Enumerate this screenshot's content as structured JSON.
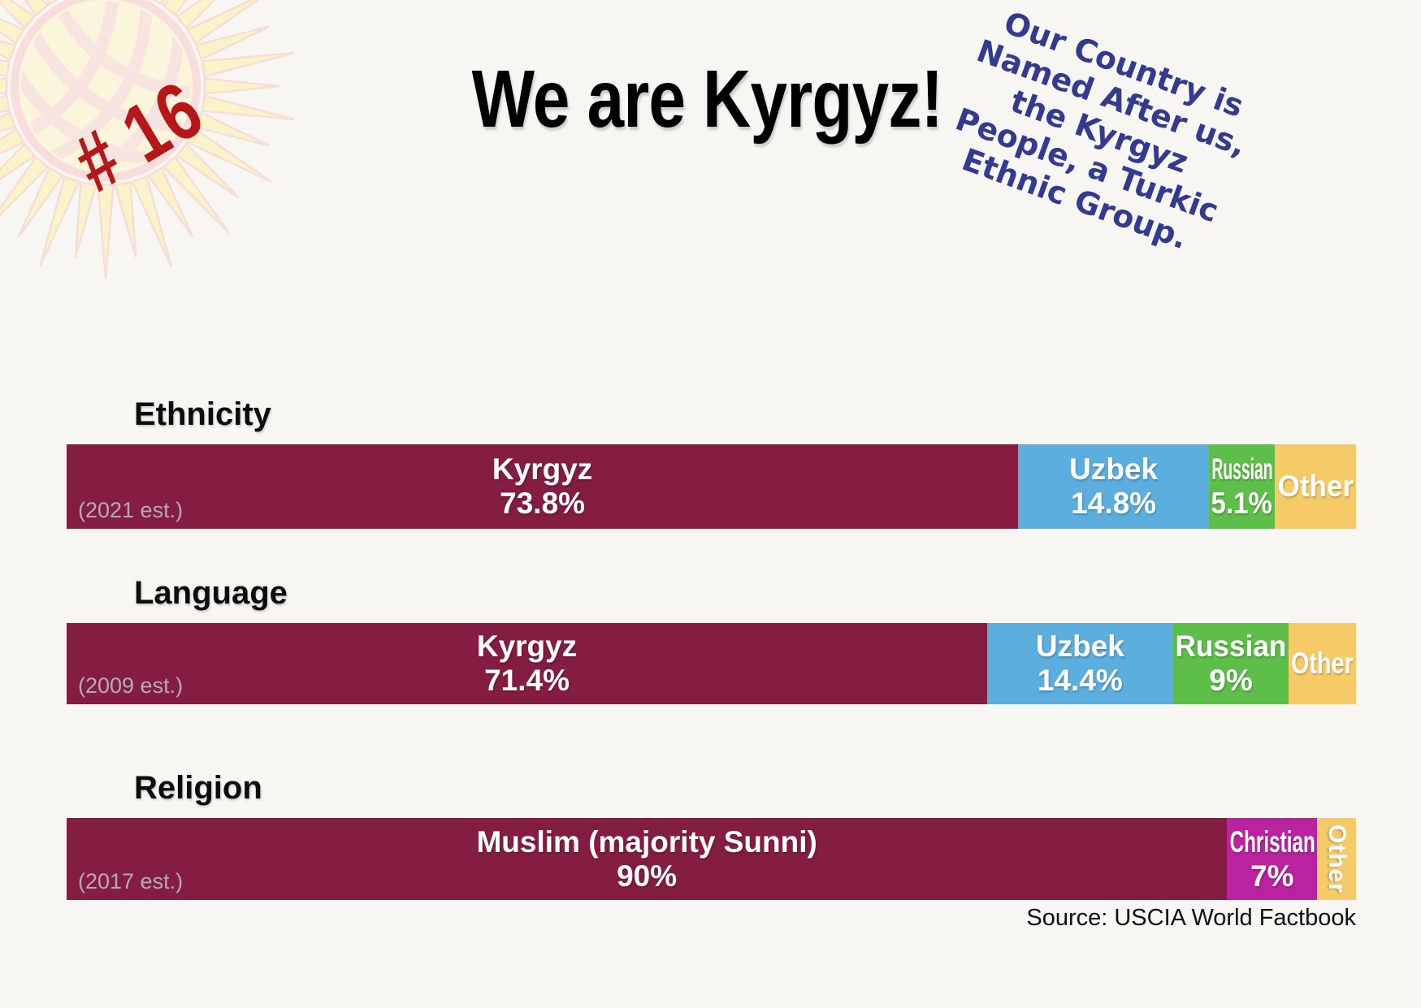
{
  "badge": {
    "label": "# 16"
  },
  "header": {
    "title": "We are Kyrgyz!"
  },
  "note": {
    "text": "Our Country is\nNamed After us,\nthe Kyrgyz\nPeople, a Turkic\nEthnic Group."
  },
  "source": {
    "text": "Source: USCIA World Factbook"
  },
  "colors": {
    "kyrgyz_maroon": "#851d42",
    "uzbek_blue": "#5baedd",
    "russian_green": "#5dbe4a",
    "other_yellow": "#f5ca67",
    "christian_magenta": "#bb22a2",
    "note_blue": "#333a90",
    "badge_red": "#b6181a",
    "est_gray": "#b3aab2"
  },
  "rows": [
    {
      "header": "Ethnicity",
      "est": "(2021 est.)",
      "segments": [
        {
          "label": "Kyrgyz",
          "value": "73.8%",
          "pct": 73.8,
          "color": "#851d42"
        },
        {
          "label": "Uzbek",
          "value": "14.8%",
          "pct": 14.8,
          "color": "#5baedd"
        },
        {
          "label": "Russian",
          "value": "5.1%",
          "pct": 5.1,
          "color": "#5dbe4a"
        },
        {
          "label": "Other",
          "value": "",
          "pct": 6.3,
          "color": "#f5ca67"
        }
      ]
    },
    {
      "header": "Language",
      "est": "(2009 est.)",
      "segments": [
        {
          "label": "Kyrgyz",
          "value": "71.4%",
          "pct": 71.4,
          "color": "#851d42"
        },
        {
          "label": "Uzbek",
          "value": "14.4%",
          "pct": 14.4,
          "color": "#5baedd"
        },
        {
          "label": "Russian",
          "value": "9%",
          "pct": 9.0,
          "color": "#5dbe4a"
        },
        {
          "label": "Other",
          "value": "",
          "pct": 5.2,
          "color": "#f5ca67"
        }
      ]
    },
    {
      "header": "Religion",
      "est": "(2017 est.)",
      "segments": [
        {
          "label": "Muslim (majority Sunni)",
          "value": "90%",
          "pct": 90.0,
          "color": "#851d42"
        },
        {
          "label": "Christian",
          "value": "7%",
          "pct": 7.0,
          "color": "#bb22a2"
        },
        {
          "label": "Other",
          "value": "",
          "pct": 3.0,
          "color": "#f5ca67",
          "vertical": true
        }
      ]
    }
  ],
  "chart_data": [
    {
      "type": "bar",
      "variant": "stacked-horizontal",
      "title": "Ethnicity",
      "subtitle": "(2021 est.)",
      "categories": [
        "Kyrgyz",
        "Uzbek",
        "Russian",
        "Other"
      ],
      "values": [
        73.8,
        14.8,
        5.1,
        6.3
      ],
      "unit": "%",
      "xlim": [
        0,
        100
      ],
      "grid": false,
      "legend": "labels-inside-segments"
    },
    {
      "type": "bar",
      "variant": "stacked-horizontal",
      "title": "Language",
      "subtitle": "(2009 est.)",
      "categories": [
        "Kyrgyz",
        "Uzbek",
        "Russian",
        "Other"
      ],
      "values": [
        71.4,
        14.4,
        9,
        5.2
      ],
      "unit": "%",
      "xlim": [
        0,
        100
      ],
      "grid": false,
      "legend": "labels-inside-segments"
    },
    {
      "type": "bar",
      "variant": "stacked-horizontal",
      "title": "Religion",
      "subtitle": "(2017 est.)",
      "categories": [
        "Muslim (majority Sunni)",
        "Christian",
        "Other"
      ],
      "values": [
        90,
        7,
        3
      ],
      "unit": "%",
      "xlim": [
        0,
        100
      ],
      "grid": false,
      "legend": "labels-inside-segments"
    }
  ]
}
